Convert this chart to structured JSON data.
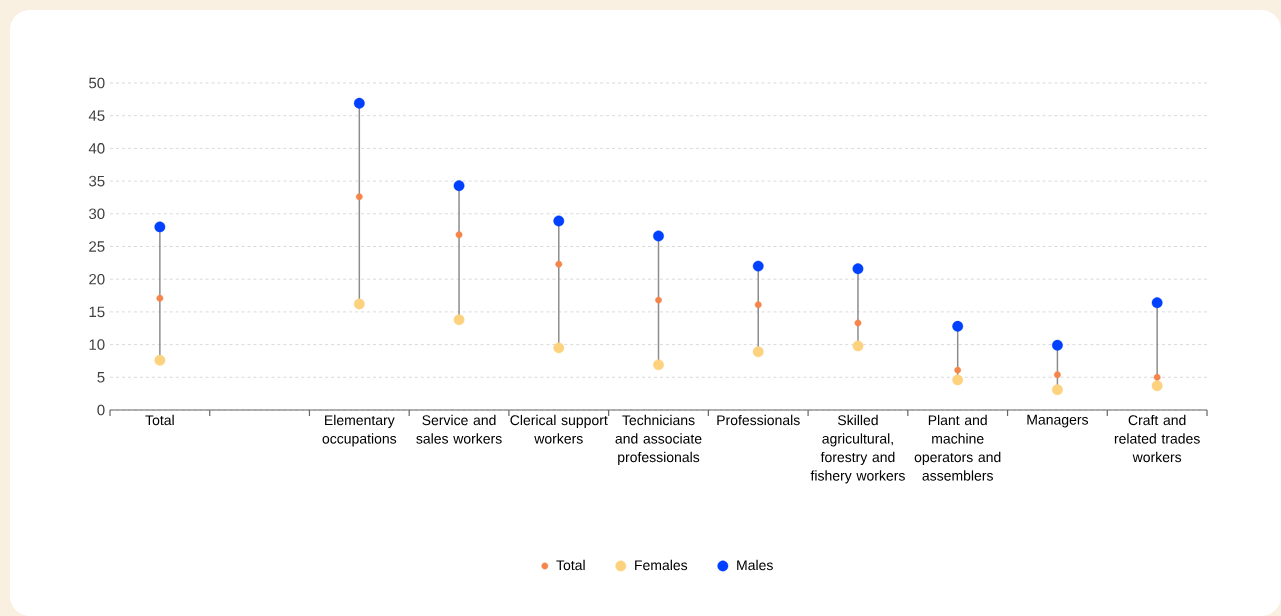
{
  "chart_data": {
    "type": "scatter",
    "categories": [
      "Total",
      null,
      "Elementary occupations",
      "Service and sales workers",
      "Clerical support workers",
      "Technicians and associate professionals",
      "Professionals",
      "Skilled agricultural, forestry and fishery workers",
      "Plant and machine operators and assemblers",
      "Managers",
      "Craft and related trades workers"
    ],
    "series": [
      {
        "name": "Total",
        "color": "#f5854a",
        "values": [
          17.1,
          null,
          32.6,
          26.8,
          22.3,
          16.8,
          16.1,
          13.3,
          6.1,
          5.4,
          5.0
        ]
      },
      {
        "name": "Females",
        "color": "#fdd27f",
        "values": [
          7.6,
          null,
          16.2,
          13.8,
          9.5,
          6.9,
          8.9,
          9.8,
          4.6,
          3.1,
          3.7
        ]
      },
      {
        "name": "Males",
        "color": "#0040ff",
        "values": [
          28.0,
          null,
          46.9,
          34.3,
          28.9,
          26.6,
          22.0,
          21.6,
          12.8,
          9.9,
          16.4
        ]
      }
    ],
    "ylim": [
      0,
      50
    ],
    "yticks": [
      0,
      5,
      10,
      15,
      20,
      25,
      30,
      35,
      40,
      45,
      50
    ],
    "grid": "y",
    "legend": "bottom"
  }
}
